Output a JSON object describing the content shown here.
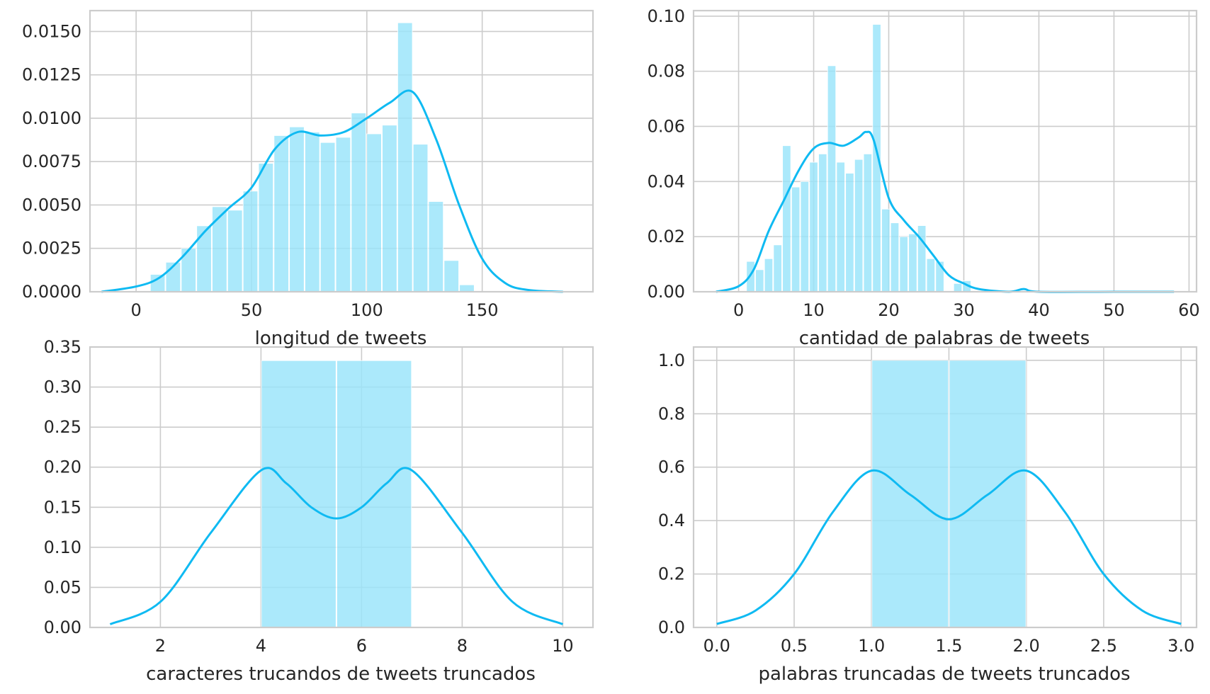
{
  "colors": {
    "bar": "#98e4fa",
    "kde": "#0fbaf2",
    "grid": "#cccccc",
    "frame": "#cccccc",
    "text": "#262626"
  },
  "chart_data": [
    {
      "type": "bar",
      "kind": "histogram-with-kde",
      "xlabel": "longitud de tweets",
      "ylabel": "",
      "xlim": [
        -20,
        198
      ],
      "ylim": [
        0,
        0.0162
      ],
      "xticks": [
        0,
        50,
        100,
        150
      ],
      "xtick_labels": [
        "0",
        "50",
        "100",
        "150"
      ],
      "yticks": [
        0,
        0.0025,
        0.005,
        0.0075,
        0.01,
        0.0125,
        0.015
      ],
      "ytick_labels": [
        "0.0000",
        "0.0025",
        "0.0050",
        "0.0075",
        "0.0100",
        "0.0125",
        "0.0150"
      ],
      "grid": true,
      "bins": [
        {
          "x0": 6,
          "x1": 12.7,
          "value": 0.001
        },
        {
          "x0": 12.7,
          "x1": 19.4,
          "value": 0.0017
        },
        {
          "x0": 19.4,
          "x1": 26.1,
          "value": 0.0025
        },
        {
          "x0": 26.1,
          "x1": 32.8,
          "value": 0.0038
        },
        {
          "x0": 32.8,
          "x1": 39.5,
          "value": 0.0049
        },
        {
          "x0": 39.5,
          "x1": 46.2,
          "value": 0.0047
        },
        {
          "x0": 46.2,
          "x1": 52.9,
          "value": 0.0058
        },
        {
          "x0": 52.9,
          "x1": 59.6,
          "value": 0.0074
        },
        {
          "x0": 59.6,
          "x1": 66.3,
          "value": 0.009
        },
        {
          "x0": 66.3,
          "x1": 73.0,
          "value": 0.0095
        },
        {
          "x0": 73.0,
          "x1": 79.7,
          "value": 0.0092
        },
        {
          "x0": 79.7,
          "x1": 86.4,
          "value": 0.0086
        },
        {
          "x0": 86.4,
          "x1": 93.1,
          "value": 0.0089
        },
        {
          "x0": 93.1,
          "x1": 99.8,
          "value": 0.0103
        },
        {
          "x0": 99.8,
          "x1": 106.5,
          "value": 0.0091
        },
        {
          "x0": 106.5,
          "x1": 113.2,
          "value": 0.0096
        },
        {
          "x0": 113.2,
          "x1": 119.9,
          "value": 0.0155
        },
        {
          "x0": 119.9,
          "x1": 126.6,
          "value": 0.0085
        },
        {
          "x0": 126.6,
          "x1": 133.3,
          "value": 0.0052
        },
        {
          "x0": 133.3,
          "x1": 140.0,
          "value": 0.0018
        },
        {
          "x0": 140.0,
          "x1": 146.7,
          "value": 0.0004
        }
      ],
      "kde": {
        "x": [
          -15,
          0,
          10,
          20,
          30,
          40,
          50,
          60,
          70,
          80,
          90,
          100,
          110,
          120,
          130,
          140,
          150,
          160,
          170,
          185
        ],
        "y": [
          0.0,
          0.0003,
          0.0008,
          0.002,
          0.0035,
          0.0048,
          0.006,
          0.0082,
          0.0092,
          0.009,
          0.0092,
          0.01,
          0.0109,
          0.0115,
          0.0088,
          0.005,
          0.0019,
          0.0005,
          0.0001,
          0.0
        ]
      }
    },
    {
      "type": "bar",
      "kind": "histogram-with-kde",
      "xlabel": "cantidad de palabras de tweets",
      "ylabel": "",
      "xlim": [
        -6,
        61
      ],
      "ylim": [
        0,
        0.102
      ],
      "xticks": [
        0,
        10,
        20,
        30,
        40,
        50,
        60
      ],
      "xtick_labels": [
        "0",
        "10",
        "20",
        "30",
        "40",
        "50",
        "60"
      ],
      "yticks": [
        0,
        0.02,
        0.04,
        0.06,
        0.08,
        0.1
      ],
      "ytick_labels": [
        "0.00",
        "0.02",
        "0.04",
        "0.06",
        "0.08",
        "0.10"
      ],
      "grid": true,
      "bins": [
        {
          "x0": 1,
          "x1": 2.2,
          "value": 0.011
        },
        {
          "x0": 2.2,
          "x1": 3.4,
          "value": 0.008
        },
        {
          "x0": 3.4,
          "x1": 4.6,
          "value": 0.012
        },
        {
          "x0": 4.6,
          "x1": 5.8,
          "value": 0.017
        },
        {
          "x0": 5.8,
          "x1": 7.0,
          "value": 0.053
        },
        {
          "x0": 7.0,
          "x1": 8.2,
          "value": 0.038
        },
        {
          "x0": 8.2,
          "x1": 9.4,
          "value": 0.04
        },
        {
          "x0": 9.4,
          "x1": 10.6,
          "value": 0.047
        },
        {
          "x0": 10.6,
          "x1": 11.8,
          "value": 0.05
        },
        {
          "x0": 11.8,
          "x1": 13.0,
          "value": 0.082
        },
        {
          "x0": 13.0,
          "x1": 14.2,
          "value": 0.047
        },
        {
          "x0": 14.2,
          "x1": 15.4,
          "value": 0.043
        },
        {
          "x0": 15.4,
          "x1": 16.6,
          "value": 0.048
        },
        {
          "x0": 16.6,
          "x1": 17.8,
          "value": 0.05
        },
        {
          "x0": 17.8,
          "x1": 19.0,
          "value": 0.097
        },
        {
          "x0": 19.0,
          "x1": 20.2,
          "value": 0.03
        },
        {
          "x0": 20.2,
          "x1": 21.4,
          "value": 0.025
        },
        {
          "x0": 21.4,
          "x1": 22.6,
          "value": 0.02
        },
        {
          "x0": 22.6,
          "x1": 23.8,
          "value": 0.021
        },
        {
          "x0": 23.8,
          "x1": 25.0,
          "value": 0.024
        },
        {
          "x0": 25.0,
          "x1": 26.2,
          "value": 0.012
        },
        {
          "x0": 26.2,
          "x1": 27.4,
          "value": 0.011
        },
        {
          "x0": 28.6,
          "x1": 29.8,
          "value": 0.003
        },
        {
          "x0": 29.8,
          "x1": 31.0,
          "value": 0.004
        }
      ],
      "kde": {
        "x": [
          -3,
          0,
          2,
          4,
          6,
          8,
          10,
          12,
          14,
          16,
          17,
          18,
          20,
          22,
          24,
          26,
          28,
          30,
          32,
          36,
          38,
          40,
          50,
          58
        ],
        "y": [
          0.0,
          0.002,
          0.008,
          0.022,
          0.033,
          0.044,
          0.052,
          0.054,
          0.053,
          0.056,
          0.058,
          0.055,
          0.034,
          0.026,
          0.02,
          0.013,
          0.006,
          0.003,
          0.001,
          0.0,
          0.001,
          0.0,
          0.0,
          0.0
        ]
      }
    },
    {
      "type": "bar",
      "kind": "histogram-with-kde",
      "xlabel": "caracteres trucandos de tweets truncados",
      "ylabel": "",
      "xlim": [
        0.6,
        10.6
      ],
      "ylim": [
        0,
        0.35
      ],
      "xticks": [
        2,
        4,
        6,
        8,
        10
      ],
      "xtick_labels": [
        "2",
        "4",
        "6",
        "8",
        "10"
      ],
      "yticks": [
        0,
        0.05,
        0.1,
        0.15,
        0.2,
        0.25,
        0.3,
        0.35
      ],
      "ytick_labels": [
        "0.00",
        "0.05",
        "0.10",
        "0.15",
        "0.20",
        "0.25",
        "0.30",
        "0.35"
      ],
      "grid": true,
      "bins": [
        {
          "x0": 4,
          "x1": 5.5,
          "value": 0.333
        },
        {
          "x0": 5.5,
          "x1": 7,
          "value": 0.333
        }
      ],
      "kde": {
        "x": [
          1,
          2,
          3,
          4,
          4.5,
          5,
          5.5,
          6,
          6.5,
          7,
          8,
          9,
          10
        ],
        "y": [
          0.004,
          0.032,
          0.118,
          0.196,
          0.18,
          0.15,
          0.136,
          0.15,
          0.18,
          0.196,
          0.118,
          0.032,
          0.004
        ]
      }
    },
    {
      "type": "bar",
      "kind": "histogram-with-kde",
      "xlabel": "palabras truncadas de tweets truncados",
      "ylabel": "",
      "xlim": [
        -0.15,
        3.1
      ],
      "ylim": [
        0,
        1.05
      ],
      "xticks": [
        0,
        0.5,
        1.0,
        1.5,
        2.0,
        2.5,
        3.0
      ],
      "xtick_labels": [
        "0.0",
        "0.5",
        "1.0",
        "1.5",
        "2.0",
        "2.5",
        "3.0"
      ],
      "yticks": [
        0,
        0.2,
        0.4,
        0.6,
        0.8,
        1.0
      ],
      "ytick_labels": [
        "0.0",
        "0.2",
        "0.4",
        "0.6",
        "0.8",
        "1.0"
      ],
      "grid": true,
      "bins": [
        {
          "x0": 1.0,
          "x1": 1.5,
          "value": 1.0
        },
        {
          "x0": 1.5,
          "x1": 2.0,
          "value": 1.0
        }
      ],
      "kde": {
        "x": [
          0,
          0.25,
          0.5,
          0.75,
          1.0,
          1.25,
          1.5,
          1.75,
          2.0,
          2.25,
          2.5,
          2.75,
          3.0
        ],
        "y": [
          0.013,
          0.063,
          0.2,
          0.432,
          0.587,
          0.497,
          0.405,
          0.497,
          0.587,
          0.432,
          0.2,
          0.063,
          0.013
        ]
      }
    }
  ]
}
